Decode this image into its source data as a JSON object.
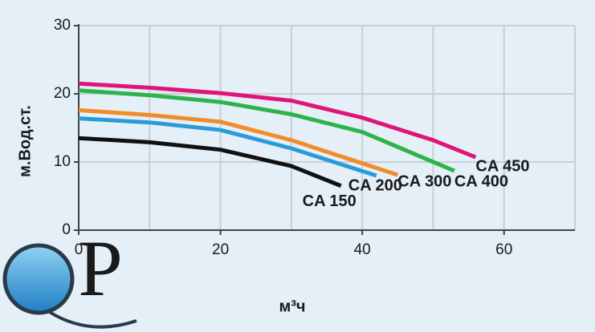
{
  "chart_data": {
    "type": "line",
    "y_label": "м.Вод.ст.",
    "x_label": "м³ч",
    "logo": "QP",
    "xlim": [
      0,
      70
    ],
    "ylim": [
      0,
      30
    ],
    "xticks": [
      0,
      20,
      40,
      60
    ],
    "xminorticks": [
      10,
      30,
      50,
      70
    ],
    "yticks": [
      0,
      10,
      20,
      30
    ],
    "grid": true,
    "series": [
      {
        "name": "CA 150",
        "color": "#111111",
        "x": [
          0,
          10,
          20,
          30,
          37
        ],
        "values": [
          13.5,
          12.9,
          11.8,
          9.4,
          6.5
        ]
      },
      {
        "name": "CA 200",
        "color": "#2b9ad8",
        "x": [
          0,
          10,
          20,
          30,
          42
        ],
        "values": [
          16.4,
          15.8,
          14.7,
          12,
          8
        ]
      },
      {
        "name": "CA 300",
        "color": "#f28c28",
        "x": [
          0,
          10,
          20,
          30,
          45
        ],
        "values": [
          17.6,
          16.9,
          15.9,
          13.2,
          8.1
        ]
      },
      {
        "name": "CA 400",
        "color": "#2db34a",
        "x": [
          0,
          10,
          20,
          30,
          40,
          53
        ],
        "values": [
          20.5,
          19.8,
          18.8,
          17,
          14.4,
          8.7
        ]
      },
      {
        "name": "CA 450",
        "color": "#e0157a",
        "x": [
          0,
          10,
          20,
          30,
          40,
          50,
          56
        ],
        "values": [
          21.5,
          20.9,
          20.1,
          19,
          16.5,
          13.2,
          10.7
        ]
      }
    ]
  }
}
